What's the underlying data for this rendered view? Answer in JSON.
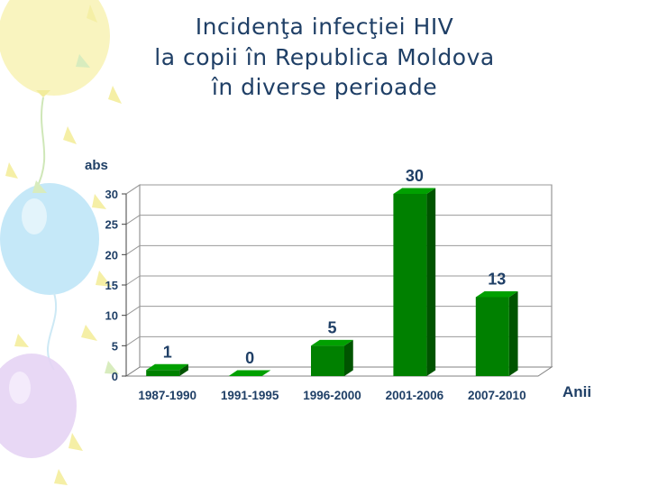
{
  "slide": {
    "title_lines": [
      "Incidenţa infecţiei HIV",
      "la copii în Republica Moldova",
      "în diverse perioade"
    ]
  },
  "colors": {
    "title": "#1f3f66",
    "axis_text": "#1f3f66",
    "bar_front": "#008000",
    "bar_top": "#00a000",
    "bar_side": "#005400",
    "balloon_blue": "#bfe6f7",
    "balloon_yellow": "#f8f3b8",
    "balloon_purple": "#e6d4f4"
  },
  "chart_data": {
    "type": "bar",
    "categories": [
      "1987-1990",
      "1991-1995",
      "1996-2000",
      "2001-2006",
      "2007-2010"
    ],
    "values": [
      1,
      0,
      5,
      30,
      13
    ],
    "data_labels": [
      "1",
      "0",
      "5",
      "30",
      "13"
    ],
    "ylabel": "abs",
    "xlabel": "Anii",
    "ylim": [
      0,
      30
    ],
    "yticks": [
      0,
      5,
      10,
      15,
      20,
      25,
      30
    ],
    "grid": true,
    "style": "3d"
  }
}
